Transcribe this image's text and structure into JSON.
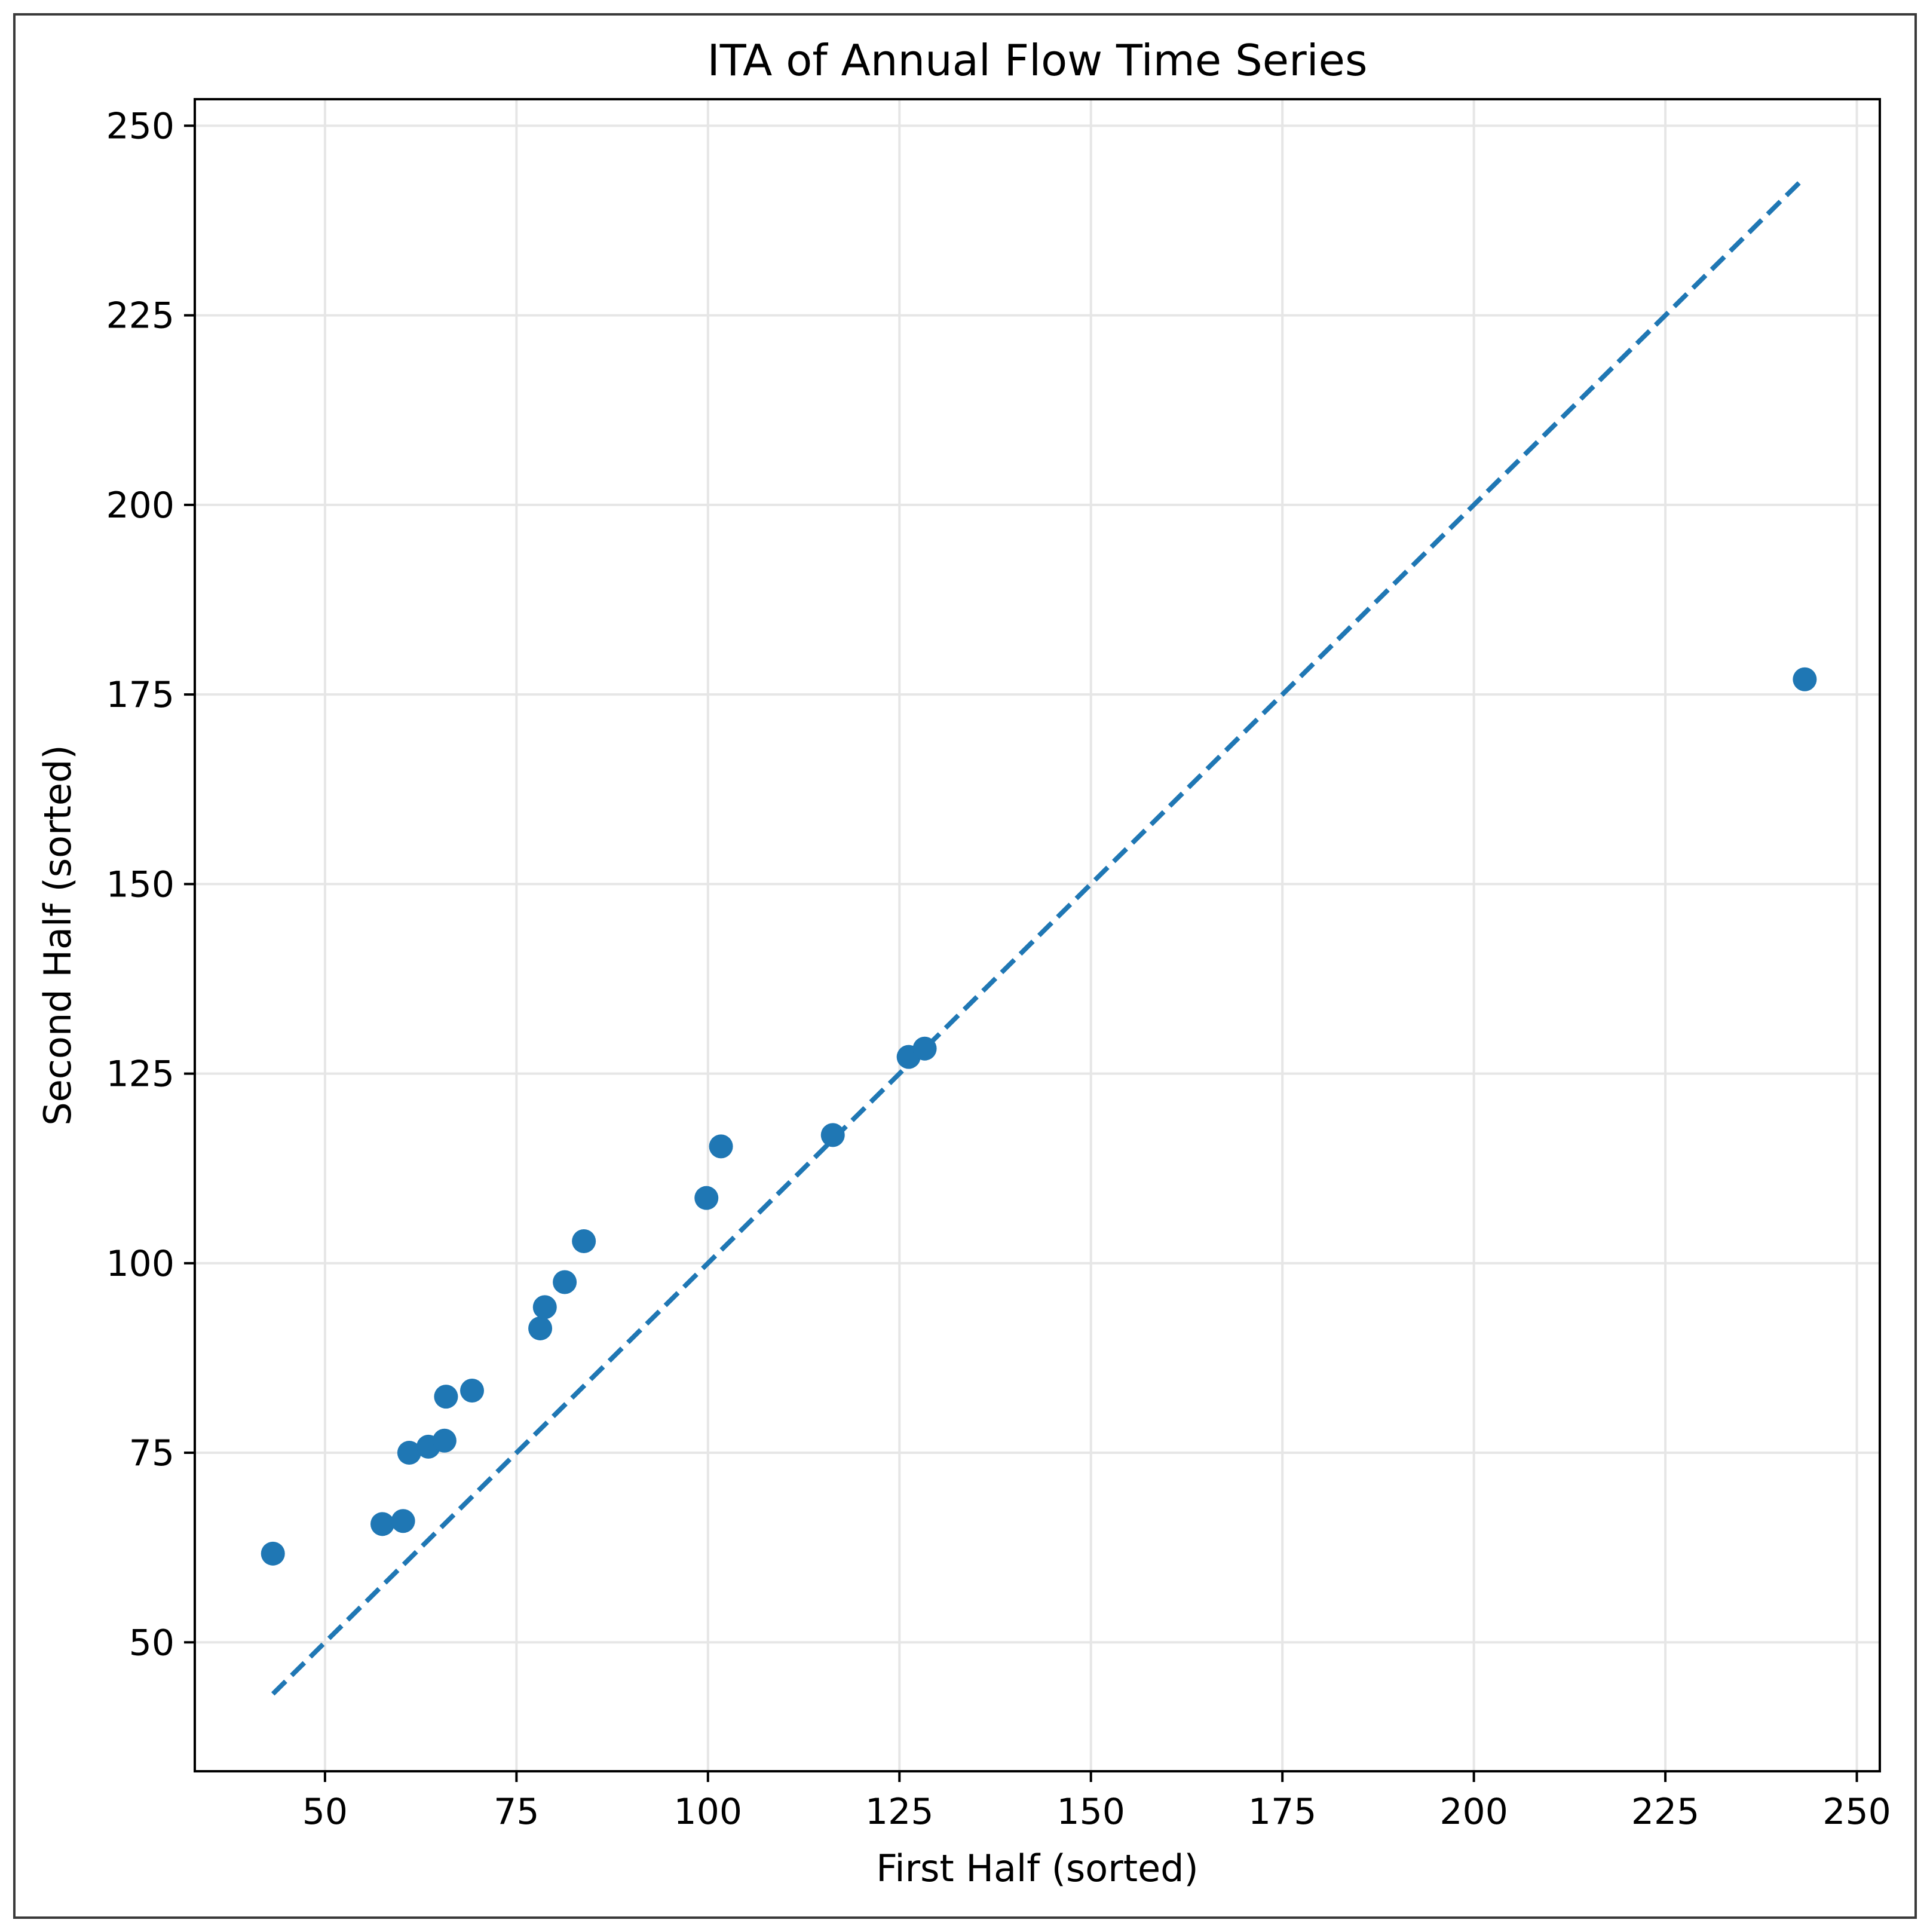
{
  "chart_data": {
    "type": "scatter",
    "title": "ITA of Annual Flow Time Series",
    "xlabel": "First Half (sorted)",
    "ylabel": "Second Half (sorted)",
    "xlim": [
      33,
      253
    ],
    "ylim": [
      33,
      253.5
    ],
    "xticks": [
      50,
      75,
      100,
      125,
      150,
      175,
      200,
      225,
      250
    ],
    "yticks": [
      50,
      75,
      100,
      125,
      150,
      175,
      200,
      225,
      250
    ],
    "grid": true,
    "colors": {
      "points": "#1f77b4",
      "reference_line": "#1f77b4",
      "grid": "#e6e6e6",
      "axes": "#000000"
    },
    "reference_line": {
      "style": "dashed",
      "x": [
        43.2,
        243.2
      ],
      "y": [
        43.2,
        243.2
      ]
    },
    "series": [
      {
        "x": [
          43.2,
          57.5,
          60.2,
          61.0,
          63.5,
          65.6,
          65.8,
          69.2,
          78.1,
          78.7,
          81.3,
          83.8,
          99.8,
          101.7,
          116.3,
          126.2,
          128.3,
          243.2
        ],
        "y": [
          61.7,
          65.6,
          66.0,
          75.0,
          75.8,
          76.6,
          82.4,
          83.2,
          91.4,
          94.2,
          97.5,
          102.9,
          108.6,
          115.4,
          116.9,
          127.2,
          128.3,
          177.0
        ]
      }
    ]
  }
}
